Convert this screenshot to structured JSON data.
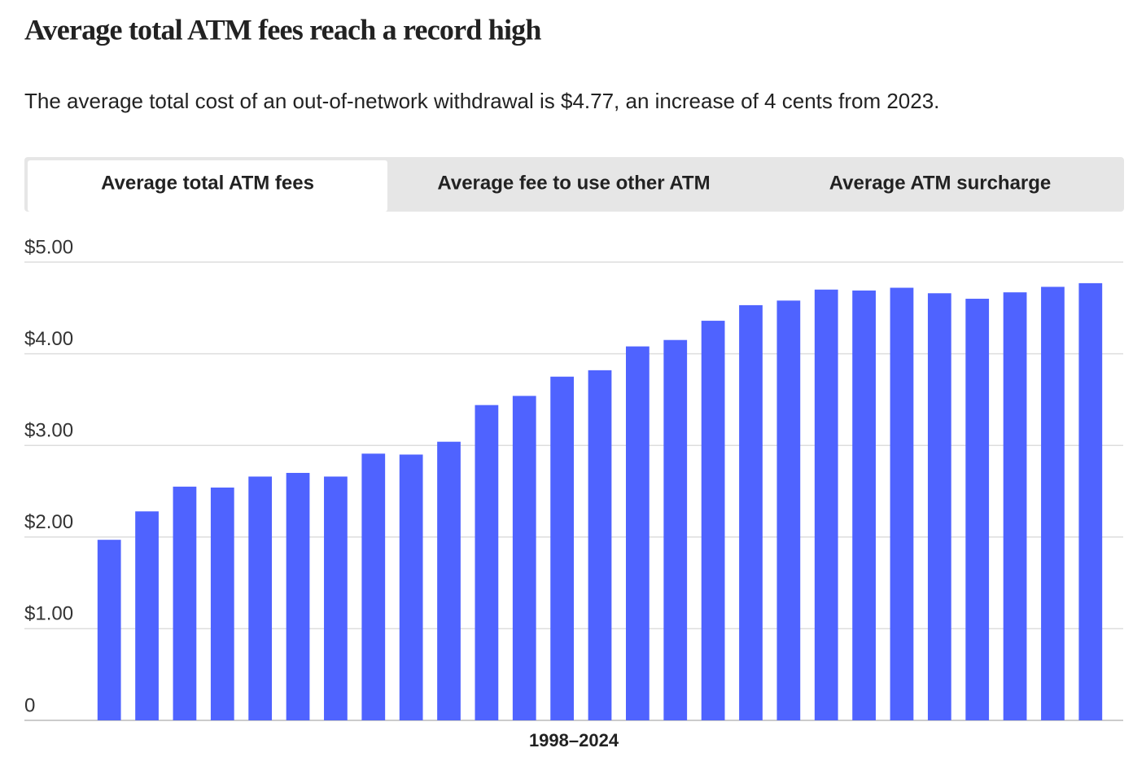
{
  "chart_data": {
    "type": "bar",
    "title": "Average total ATM fees reach a record high",
    "subtitle": "The average total cost of an out-of-network withdrawal is $4.77, an increase of 4 cents from 2023.",
    "tabs": [
      "Average total ATM fees",
      "Average fee to use other ATM",
      "Average ATM surcharge"
    ],
    "xlabel": "1998–2024",
    "values": [
      1.97,
      2.28,
      2.55,
      2.54,
      2.66,
      2.7,
      2.66,
      2.91,
      2.9,
      3.04,
      3.44,
      3.54,
      3.75,
      3.82,
      4.08,
      4.15,
      4.36,
      4.53,
      4.58,
      4.7,
      4.69,
      4.72,
      4.66,
      4.6,
      4.67,
      4.73,
      4.77
    ],
    "color": "#4f63ff",
    "ylim": [
      0,
      5
    ],
    "yticks": [
      0,
      {
        "value": 1,
        "label": "$1.00"
      },
      {
        "value": 2,
        "label": "$2.00"
      },
      {
        "value": 3,
        "label": "$3.00"
      },
      {
        "value": 4,
        "label": "$4.00"
      },
      {
        "value": 5,
        "label": "$5.00"
      }
    ],
    "grid": true
  }
}
